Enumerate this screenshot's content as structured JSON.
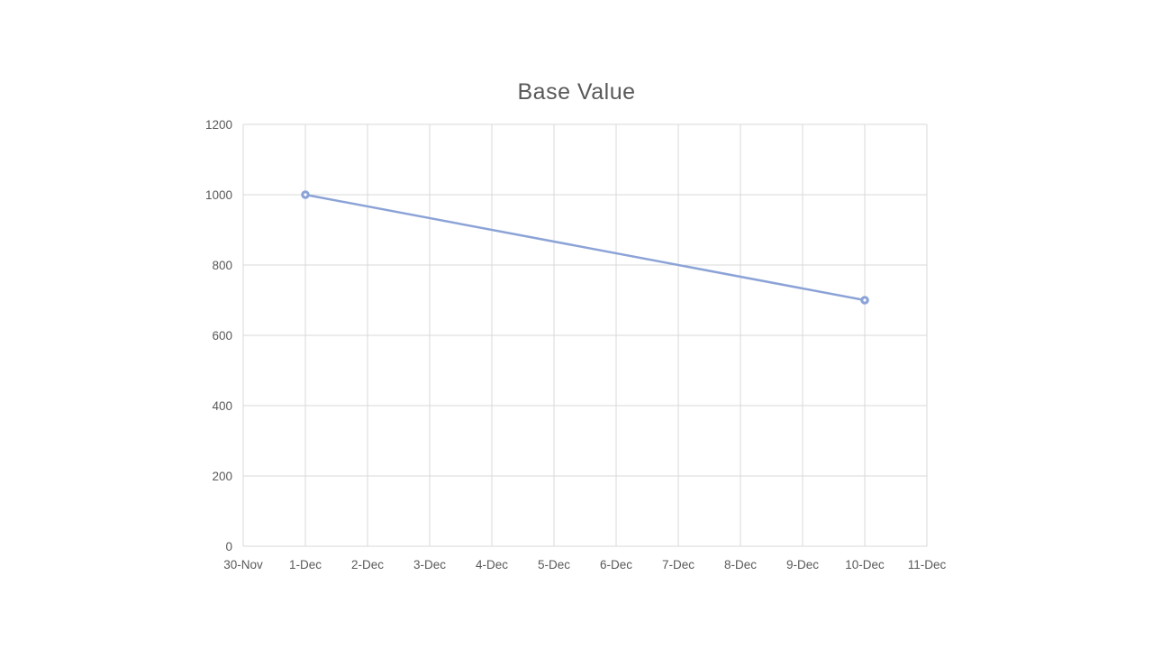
{
  "chart_data": {
    "type": "line",
    "title": "Base Value",
    "xlabel": "",
    "ylabel": "",
    "categories": [
      "30-Nov",
      "1-Dec",
      "2-Dec",
      "3-Dec",
      "4-Dec",
      "5-Dec",
      "6-Dec",
      "7-Dec",
      "8-Dec",
      "9-Dec",
      "10-Dec",
      "11-Dec"
    ],
    "series": [
      {
        "name": "Base Value",
        "values": [
          null,
          1000,
          null,
          null,
          null,
          null,
          null,
          null,
          null,
          null,
          700,
          null
        ]
      }
    ],
    "ylim": [
      0,
      1200
    ],
    "ytick_interval": 200,
    "yticks": [
      0,
      200,
      400,
      600,
      800,
      1000,
      1200
    ],
    "grid": true,
    "legend": "none",
    "marker": "circle-donut",
    "colors": {
      "line": "#8ca3d7",
      "marker_ring": "#8ca3d7",
      "marker_center": "#ffffff",
      "gridline": "#d9d9d9",
      "axis_line": "#d9d9d9",
      "tick_text": "#595959",
      "title_text": "#595959",
      "background": "#ffffff"
    }
  }
}
